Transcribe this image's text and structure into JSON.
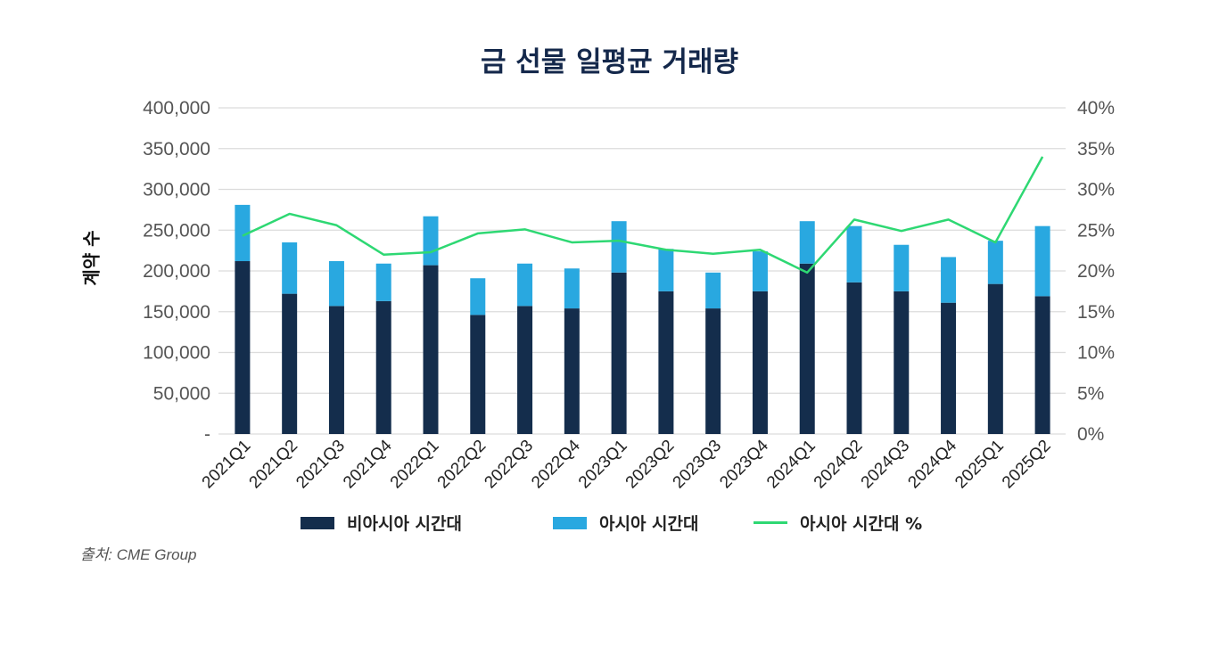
{
  "chart_data": {
    "type": "bar",
    "stacked": true,
    "title": "금 선물 일평균 거래량",
    "ylabel": "계약 수",
    "ylabel_right": "",
    "ylim": [
      0,
      400000
    ],
    "ylim_right": [
      0,
      40
    ],
    "yticks": [
      "-",
      "50,000",
      "100,000",
      "150,000",
      "200,000",
      "250,000",
      "300,000",
      "350,000",
      "400,000"
    ],
    "yticks_right": [
      "0%",
      "5%",
      "10%",
      "15%",
      "20%",
      "25%",
      "30%",
      "35%",
      "40%"
    ],
    "grid": true,
    "legend_position": "bottom",
    "categories": [
      "2021Q1",
      "2021Q2",
      "2021Q3",
      "2021Q4",
      "2022Q1",
      "2022Q2",
      "2022Q3",
      "2022Q4",
      "2023Q1",
      "2023Q2",
      "2023Q3",
      "2023Q4",
      "2024Q1",
      "2024Q2",
      "2024Q3",
      "2024Q4",
      "2025Q1",
      "2025Q2"
    ],
    "series": [
      {
        "name": "비아시아 시간대",
        "type": "bar",
        "axis": "left",
        "color": "#142d4c",
        "values": [
          212000,
          172000,
          157000,
          163000,
          207000,
          146000,
          157000,
          154000,
          198000,
          175000,
          154000,
          175000,
          209000,
          186000,
          175000,
          161000,
          184000,
          169000
        ]
      },
      {
        "name": "아시아 시간대",
        "type": "bar",
        "axis": "left",
        "color": "#29a8e0",
        "values": [
          69000,
          63000,
          55000,
          46000,
          60000,
          45000,
          52000,
          49000,
          63000,
          52000,
          44000,
          49000,
          52000,
          69000,
          57000,
          56000,
          53000,
          86000
        ]
      },
      {
        "name": "아시아 시간대 %",
        "type": "line",
        "axis": "right",
        "color": "#2ed873",
        "values": [
          24.3,
          27.0,
          25.6,
          22.0,
          22.3,
          24.6,
          25.1,
          23.5,
          23.7,
          22.6,
          22.1,
          22.6,
          19.8,
          26.3,
          24.9,
          26.3,
          23.5,
          34.0
        ]
      }
    ]
  },
  "source": "출처: CME Group"
}
